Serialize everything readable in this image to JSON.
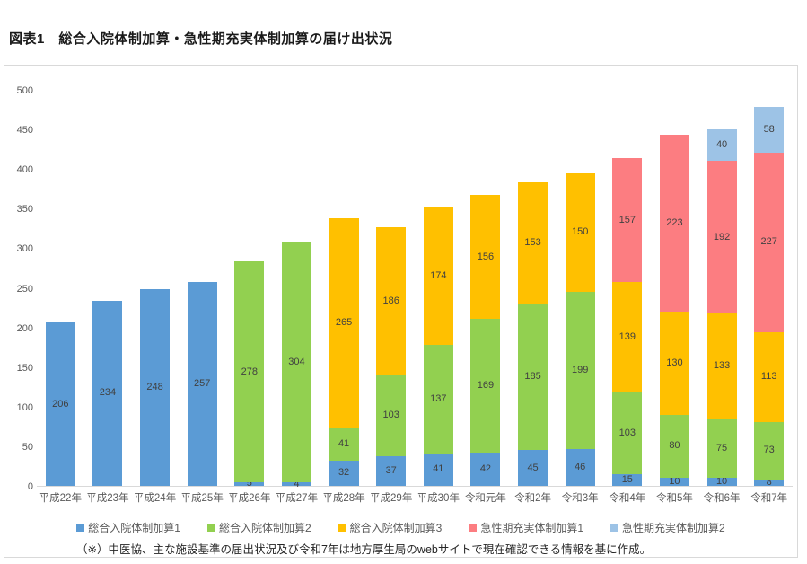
{
  "page": {
    "title": "図表1　総合入院体制加算・急性期充実体制加算の届け出状況",
    "footnote": "（※）中医協、主な施設基準の届出状況及び令和7年は地方厚生局のwebサイトで現在確認できる情報を基に作成。"
  },
  "chart_data": {
    "type": "bar",
    "stacked": true,
    "title": "図表1　総合入院体制加算・急性期充実体制加算の届け出状況",
    "xlabel": "",
    "ylabel": "",
    "ylim": [
      0,
      500
    ],
    "ytick_step": 50,
    "grid": false,
    "legend_position": "bottom",
    "label_color": "#404040",
    "axis_text_color": "#595959",
    "axis_line_color": "#d9d9d9",
    "categories": [
      "平成22年",
      "平成23年",
      "平成24年",
      "平成25年",
      "平成26年",
      "平成27年",
      "平成28年",
      "平成29年",
      "平成30年",
      "令和元年",
      "令和2年",
      "令和3年",
      "令和4年",
      "令和5年",
      "令和6年",
      "令和7年"
    ],
    "series": [
      {
        "name": "総合入院体制加算1",
        "color": "#5B9BD5",
        "values": [
          206,
          234,
          248,
          257,
          5,
          4,
          32,
          37,
          41,
          42,
          45,
          46,
          15,
          10,
          10,
          8
        ]
      },
      {
        "name": "総合入院体制加算2",
        "color": "#92D050",
        "values": [
          0,
          0,
          0,
          0,
          278,
          304,
          41,
          103,
          137,
          169,
          185,
          199,
          103,
          80,
          75,
          73
        ]
      },
      {
        "name": "総合入院体制加算3",
        "color": "#FFC000",
        "values": [
          0,
          0,
          0,
          0,
          0,
          0,
          265,
          186,
          174,
          156,
          153,
          150,
          139,
          130,
          133,
          113
        ]
      },
      {
        "name": "急性期充実体制加算1",
        "color": "#FC7D81",
        "values": [
          0,
          0,
          0,
          0,
          0,
          0,
          0,
          0,
          0,
          0,
          0,
          0,
          157,
          223,
          192,
          227
        ]
      },
      {
        "name": "急性期充実体制加算2",
        "color": "#9DC3E6",
        "values": [
          0,
          0,
          0,
          0,
          0,
          0,
          0,
          0,
          0,
          0,
          0,
          0,
          0,
          0,
          40,
          58
        ]
      }
    ],
    "totals": [
      206,
      234,
      248,
      257,
      283,
      308,
      338,
      326,
      352,
      367,
      383,
      395,
      414,
      443,
      450,
      479
    ]
  }
}
